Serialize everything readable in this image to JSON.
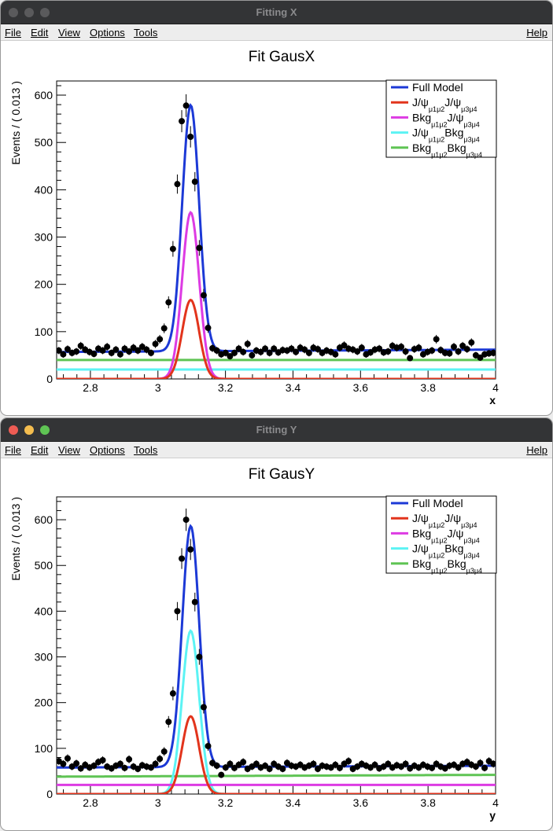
{
  "windows": [
    {
      "id": "X",
      "title": "Fitting X",
      "menu": {
        "file": "File",
        "edit": "Edit",
        "view": "View",
        "options": "Options",
        "tools": "Tools",
        "help": "Help"
      },
      "chart_data": {
        "type": "line",
        "title": "Fit GausX",
        "xlabel": "x",
        "ylabel": "Events / ( 0.013 )",
        "xlim": [
          2.7,
          4.0
        ],
        "ylim": [
          0,
          630
        ],
        "x_ticks": [
          "2.8",
          "3",
          "3.2",
          "3.4",
          "3.6",
          "3.8",
          "4"
        ],
        "y_ticks": [
          "0",
          "100",
          "200",
          "300",
          "400",
          "500",
          "600"
        ],
        "legend": [
          {
            "main": "Full Model",
            "color": "#1c39d6"
          },
          {
            "main": "J/ψ",
            "sub1": "μ1μ2",
            "mid": "J/ψ",
            "sub2": "μ3μ4",
            "color": "#e2341c"
          },
          {
            "main": "Bkg",
            "sub1": "μ1μ2",
            "mid": "J/ψ",
            "sub2": "μ3μ4",
            "color": "#dd3be3"
          },
          {
            "main": "J/ψ",
            "sub1": "μ1μ2",
            "mid": "Bkg",
            "sub2": "μ3μ4",
            "color": "#5cf3f4"
          },
          {
            "main": "Bkg",
            "sub1": "μ1μ2",
            "mid": "Bkg",
            "sub2": "μ3μ4",
            "color": "#5fc454"
          }
        ],
        "series": [
          {
            "name": "Full Model",
            "color": "#1c39d6",
            "kind": "gauss",
            "mean": 3.097,
            "sigma": 0.025,
            "amp": 520,
            "base_start": 57,
            "base_end": 62,
            "width": 3
          },
          {
            "name": "J/ψ J/ψ",
            "color": "#e2341c",
            "kind": "gauss",
            "mean": 3.097,
            "sigma": 0.025,
            "amp": 167,
            "base_start": 0,
            "base_end": 0,
            "width": 3
          },
          {
            "name": "Bkg J/ψ",
            "color": "#dd3be3",
            "kind": "gauss",
            "mean": 3.097,
            "sigma": 0.025,
            "amp": 352,
            "base_start": 0,
            "base_end": 0,
            "width": 3
          },
          {
            "name": "J/ψ Bkg",
            "color": "#5cf3f4",
            "kind": "flat",
            "value_start": 20,
            "value_end": 20,
            "width": 3
          },
          {
            "name": "Bkg Bkg",
            "color": "#5fc454",
            "kind": "flat",
            "value_start": 40,
            "value_end": 40,
            "width": 3
          }
        ],
        "points": {
          "x": [
            2.7065,
            2.7195,
            2.7325,
            2.7455,
            2.7585,
            2.7715,
            2.7845,
            2.7975,
            2.8105,
            2.8235,
            2.8365,
            2.8495,
            2.8625,
            2.8755,
            2.8885,
            2.9015,
            2.9145,
            2.9275,
            2.9405,
            2.9535,
            2.9665,
            2.9795,
            2.9925,
            3.0055,
            3.0185,
            3.0315,
            3.0445,
            3.0575,
            3.0705,
            3.0835,
            3.0965,
            3.1095,
            3.1225,
            3.1355,
            3.1485,
            3.1615,
            3.1745,
            3.1875,
            3.2005,
            3.2135,
            3.2265,
            3.2395,
            3.2525,
            3.2655,
            3.2785,
            3.2915,
            3.3045,
            3.3175,
            3.3305,
            3.3435,
            3.3565,
            3.3695,
            3.3825,
            3.3955,
            3.4085,
            3.4215,
            3.4345,
            3.4475,
            3.4605,
            3.4735,
            3.4865,
            3.4995,
            3.5125,
            3.5255,
            3.5385,
            3.5515,
            3.5645,
            3.5775,
            3.5905,
            3.6035,
            3.6165,
            3.6295,
            3.6425,
            3.6555,
            3.6685,
            3.6815,
            3.6945,
            3.7075,
            3.7205,
            3.7335,
            3.7465,
            3.7595,
            3.7725,
            3.7855,
            3.7985,
            3.8115,
            3.8245,
            3.8375,
            3.8505,
            3.8635,
            3.8765,
            3.8895,
            3.9025,
            3.9155,
            3.9285,
            3.9415,
            3.9545,
            3.9675,
            3.9805,
            3.9935
          ],
          "y": [
            60,
            52,
            63,
            55,
            58,
            70,
            62,
            57,
            53,
            64,
            60,
            68,
            55,
            62,
            52,
            64,
            58,
            66,
            60,
            68,
            62,
            55,
            74,
            84,
            107,
            162,
            275,
            412,
            545,
            578,
            512,
            417,
            277,
            177,
            108,
            65,
            60,
            52,
            55,
            48,
            55,
            64,
            57,
            74,
            50,
            60,
            57,
            64,
            55,
            64,
            56,
            61,
            60,
            64,
            57,
            66,
            62,
            55,
            66,
            63,
            55,
            60,
            57,
            52,
            66,
            71,
            64,
            62,
            58,
            66,
            52,
            56,
            62,
            64,
            56,
            58,
            70,
            66,
            68,
            58,
            44,
            63,
            66,
            52,
            57,
            60,
            84,
            61,
            55,
            54,
            68,
            58,
            70,
            63,
            77,
            50,
            45,
            52,
            54,
            55
          ],
          "error_scale": 1.0
        }
      }
    },
    {
      "id": "Y",
      "title": "Fitting Y",
      "menu": {
        "file": "File",
        "edit": "Edit",
        "view": "View",
        "options": "Options",
        "tools": "Tools",
        "help": "Help"
      },
      "chart_data": {
        "type": "line",
        "title": "Fit GausY",
        "xlabel": "y",
        "ylabel": "Events / ( 0.013 )",
        "xlim": [
          2.7,
          4.0
        ],
        "ylim": [
          0,
          650
        ],
        "x_ticks": [
          "2.8",
          "3",
          "3.2",
          "3.4",
          "3.6",
          "3.8",
          "4"
        ],
        "y_ticks": [
          "0",
          "100",
          "200",
          "300",
          "400",
          "500",
          "600"
        ],
        "legend": [
          {
            "main": "Full Model",
            "color": "#1c39d6"
          },
          {
            "main": "J/ψ",
            "sub1": "μ1μ2",
            "mid": "J/ψ",
            "sub2": "μ3μ4",
            "color": "#e2341c"
          },
          {
            "main": "Bkg",
            "sub1": "μ1μ2",
            "mid": "J/ψ",
            "sub2": "μ3μ4",
            "color": "#dd3be3"
          },
          {
            "main": "J/ψ",
            "sub1": "μ1μ2",
            "mid": "Bkg",
            "sub2": "μ3μ4",
            "color": "#5cf3f4"
          },
          {
            "main": "Bkg",
            "sub1": "μ1μ2",
            "mid": "Bkg",
            "sub2": "μ3μ4",
            "color": "#5fc454"
          }
        ],
        "series": [
          {
            "name": "Full Model",
            "color": "#1c39d6",
            "kind": "gauss",
            "mean": 3.097,
            "sigma": 0.025,
            "amp": 527,
            "base_start": 58,
            "base_end": 62,
            "width": 3
          },
          {
            "name": "J/ψ J/ψ",
            "color": "#e2341c",
            "kind": "gauss",
            "mean": 3.097,
            "sigma": 0.025,
            "amp": 170,
            "base_start": 0,
            "base_end": 0,
            "width": 3
          },
          {
            "name": "Bkg J/ψ",
            "color": "#dd3be3",
            "kind": "flat",
            "value_start": 20,
            "value_end": 20,
            "width": 3
          },
          {
            "name": "J/ψ Bkg",
            "color": "#5cf3f4",
            "kind": "gauss",
            "mean": 3.097,
            "sigma": 0.025,
            "amp": 357,
            "base_start": 0,
            "base_end": 0,
            "width": 3
          },
          {
            "name": "Bkg Bkg",
            "color": "#5fc454",
            "kind": "flat",
            "value_start": 38,
            "value_end": 42,
            "width": 3
          }
        ],
        "points": {
          "x": [
            2.7065,
            2.7195,
            2.7325,
            2.7455,
            2.7585,
            2.7715,
            2.7845,
            2.7975,
            2.8105,
            2.8235,
            2.8365,
            2.8495,
            2.8625,
            2.8755,
            2.8885,
            2.9015,
            2.9145,
            2.9275,
            2.9405,
            2.9535,
            2.9665,
            2.9795,
            2.9925,
            3.0055,
            3.0185,
            3.0315,
            3.0445,
            3.0575,
            3.0705,
            3.0835,
            3.0965,
            3.1095,
            3.1225,
            3.1355,
            3.1485,
            3.1615,
            3.1745,
            3.1875,
            3.2005,
            3.2135,
            3.2265,
            3.2395,
            3.2525,
            3.2655,
            3.2785,
            3.2915,
            3.3045,
            3.3175,
            3.3305,
            3.3435,
            3.3565,
            3.3695,
            3.3825,
            3.3955,
            3.4085,
            3.4215,
            3.4345,
            3.4475,
            3.4605,
            3.4735,
            3.4865,
            3.4995,
            3.5125,
            3.5255,
            3.5385,
            3.5515,
            3.5645,
            3.5775,
            3.5905,
            3.6035,
            3.6165,
            3.6295,
            3.6425,
            3.6555,
            3.6685,
            3.6815,
            3.6945,
            3.7075,
            3.7205,
            3.7335,
            3.7465,
            3.7595,
            3.7725,
            3.7855,
            3.7985,
            3.8115,
            3.8245,
            3.8375,
            3.8505,
            3.8635,
            3.8765,
            3.8895,
            3.9025,
            3.9155,
            3.9285,
            3.9415,
            3.9545,
            3.9675,
            3.9805,
            3.9935
          ],
          "y": [
            72,
            66,
            78,
            60,
            67,
            56,
            64,
            58,
            62,
            70,
            74,
            60,
            56,
            62,
            66,
            57,
            76,
            60,
            55,
            63,
            60,
            58,
            66,
            77,
            93,
            158,
            220,
            400,
            515,
            600,
            535,
            420,
            300,
            190,
            105,
            68,
            62,
            42,
            58,
            66,
            57,
            64,
            70,
            55,
            60,
            66,
            58,
            62,
            55,
            66,
            60,
            55,
            68,
            62,
            60,
            64,
            58,
            62,
            66,
            55,
            62,
            60,
            58,
            64,
            57,
            66,
            72,
            55,
            60,
            66,
            62,
            58,
            64,
            56,
            60,
            66,
            58,
            63,
            60,
            66,
            56,
            62,
            58,
            64,
            60,
            57,
            66,
            60,
            56,
            62,
            64,
            58,
            66,
            70,
            64,
            60,
            68,
            57,
            72,
            66
          ],
          "error_scale": 1.0
        }
      }
    }
  ]
}
